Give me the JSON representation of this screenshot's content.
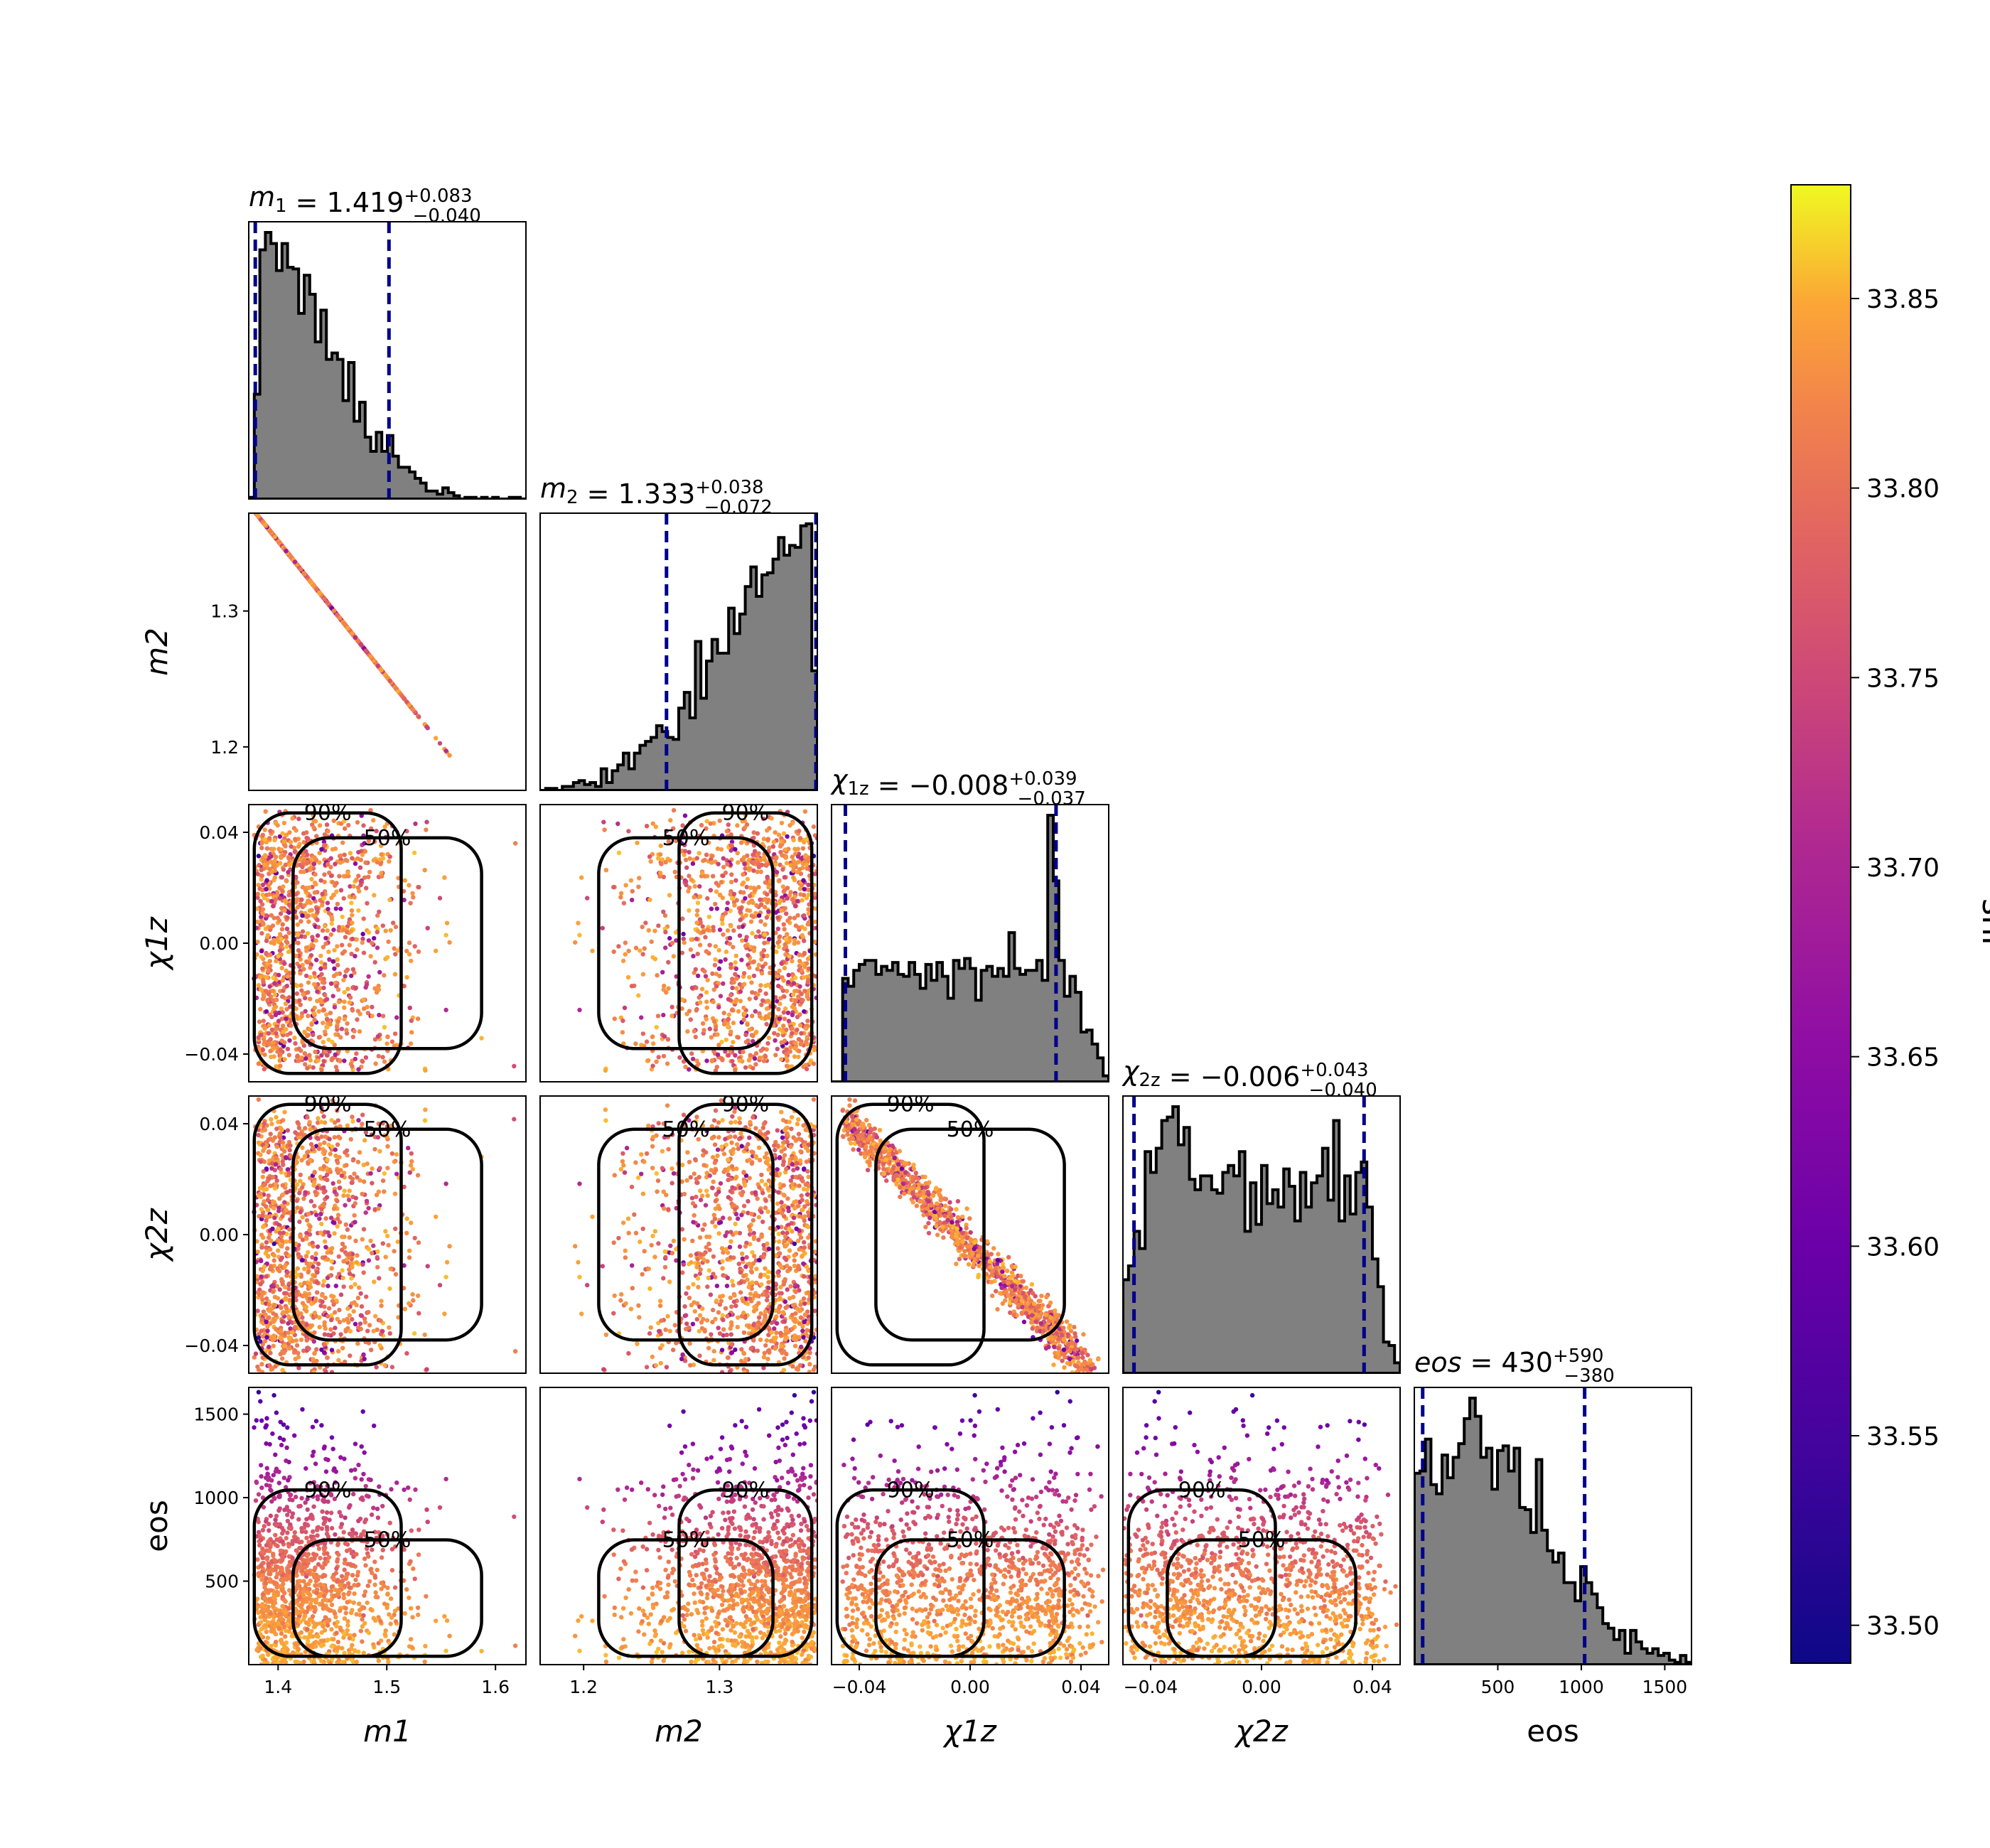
{
  "figure": {
    "colorbar_label": "snr"
  },
  "chart_data": {
    "type": "scatter",
    "variables": [
      {
        "key": "m1",
        "label": "m1",
        "lim": [
          1.373,
          1.628
        ],
        "ticks": [
          1.4,
          1.5,
          1.6
        ],
        "tick_labels": [
          "1.4",
          "1.5",
          "1.6"
        ],
        "median": 1.419,
        "plus": "0.083",
        "minus": "0.040",
        "title_name": "m",
        "title_sub": "1",
        "q_low": 1.379,
        "q_high": 1.502,
        "hist_shape": "decay"
      },
      {
        "key": "m2",
        "label": "m2",
        "lim": [
          1.168,
          1.372
        ],
        "ticks": [
          1.2,
          1.3
        ],
        "tick_labels": [
          "1.2",
          "1.3"
        ],
        "median": 1.333,
        "plus": "0.038",
        "minus": "0.072",
        "title_name": "m",
        "title_sub": "2",
        "q_low": 1.261,
        "q_high": 1.371,
        "hist_shape": "rise"
      },
      {
        "key": "chi1z",
        "label": "χ1z",
        "lim": [
          -0.05,
          0.05
        ],
        "ticks": [
          -0.04,
          0.0,
          0.04
        ],
        "tick_labels": [
          "−0.04",
          "0.00",
          "0.04"
        ],
        "median": -0.008,
        "plus": "0.039",
        "minus": "0.037",
        "title_name": "χ",
        "title_sub": "1z",
        "q_low": -0.045,
        "q_high": 0.031,
        "hist_shape": "flat"
      },
      {
        "key": "chi2z",
        "label": "χ2z",
        "lim": [
          -0.05,
          0.05
        ],
        "ticks": [
          -0.04,
          0.0,
          0.04
        ],
        "tick_labels": [
          "−0.04",
          "0.00",
          "0.04"
        ],
        "median": -0.006,
        "plus": "0.043",
        "minus": "0.040",
        "title_name": "χ",
        "title_sub": "2z",
        "q_low": -0.046,
        "q_high": 0.037,
        "hist_shape": "flat"
      },
      {
        "key": "eos",
        "label": "eos",
        "lim": [
          0,
          1660
        ],
        "ticks": [
          500,
          1000,
          1500
        ],
        "tick_labels": [
          "500",
          "1000",
          "1500"
        ],
        "median": 430,
        "plus": "590",
        "minus": "380",
        "title_name": "eos",
        "title_sub": "",
        "q_low": 50,
        "q_high": 1020,
        "hist_shape": "peak"
      }
    ],
    "contour_levels": [
      "50%",
      "90%"
    ],
    "colorbar": {
      "min": 33.49,
      "max": 33.88,
      "ticks": [
        33.5,
        33.55,
        33.6,
        33.65,
        33.7,
        33.75,
        33.8,
        33.85
      ],
      "tick_labels": [
        "33.50",
        "33.55",
        "33.60",
        "33.65",
        "33.70",
        "33.75",
        "33.80",
        "33.85"
      ],
      "colormap": "plasma"
    },
    "colors": {
      "hist_fill": "#808080",
      "hist_edge": "#000000",
      "quantile_line": "#00008b",
      "contour": "#000000"
    }
  }
}
